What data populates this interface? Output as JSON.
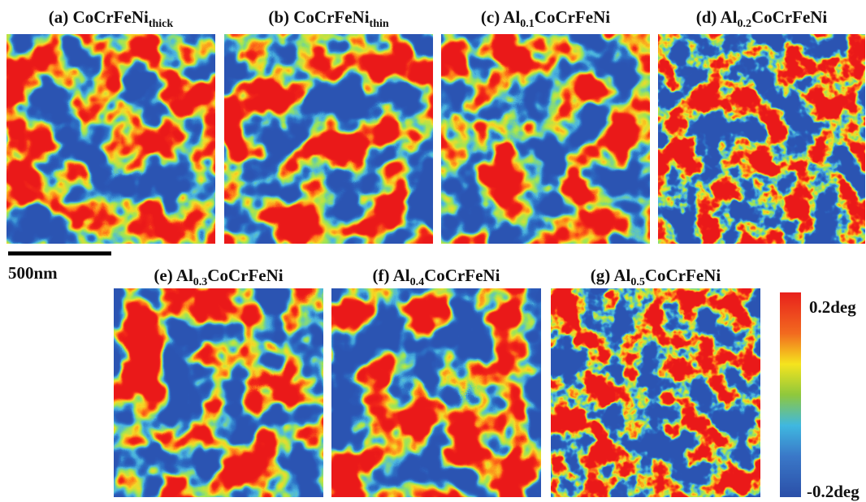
{
  "panels": [
    {
      "title": {
        "prefix": "(a) CoCrFeNi",
        "sub": "thick"
      }
    },
    {
      "title": {
        "prefix": "(b) CoCrFeNi",
        "sub": "thin"
      }
    },
    {
      "title": {
        "prefix": "(c) Al",
        "sub": "0.1",
        "suffix": "CoCrFeNi"
      }
    },
    {
      "title": {
        "prefix": "(d) Al",
        "sub": "0.2",
        "suffix": "CoCrFeNi"
      }
    },
    {
      "title": {
        "prefix": "(e) Al",
        "sub": "0.3",
        "suffix": "CoCrFeNi"
      }
    },
    {
      "title": {
        "prefix": "(f) Al",
        "sub": "0.4",
        "suffix": "CoCrFeNi"
      }
    },
    {
      "title": {
        "prefix": "(g) Al",
        "sub": "0.5",
        "suffix": "CoCrFeNi"
      }
    }
  ],
  "scale_bar": "500nm",
  "colorbar": {
    "max_label": "0.2deg",
    "min_label": "-0.2deg"
  }
}
